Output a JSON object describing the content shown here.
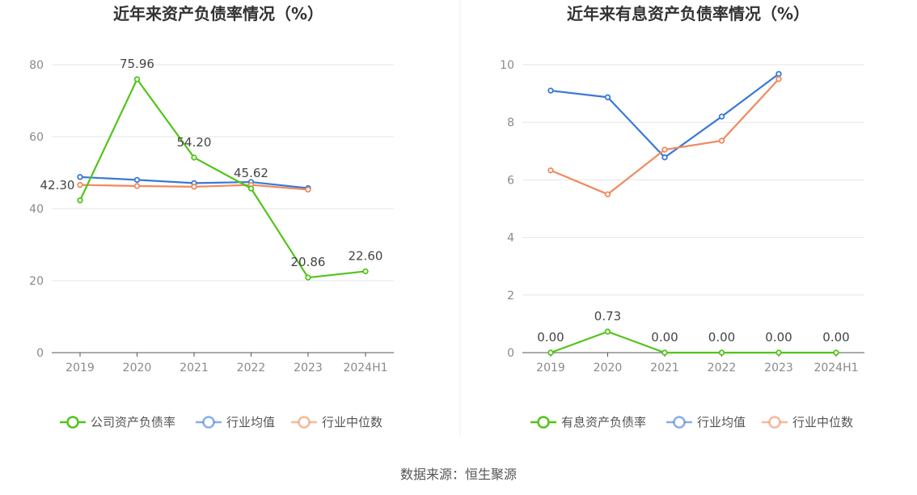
{
  "source_label": "数据来源：恒生聚源",
  "chart_data": [
    {
      "type": "line",
      "title": "近年来资产负债率情况（%）",
      "categories": [
        "2019",
        "2020",
        "2021",
        "2022",
        "2023",
        "2024H1"
      ],
      "ylim": [
        0,
        80
      ],
      "yticks": [
        0,
        20,
        40,
        60,
        80
      ],
      "grid": true,
      "legend_placement": "bottom",
      "series": [
        {
          "name": "公司资产负债率",
          "color": "#52c41a",
          "values": [
            42.3,
            75.96,
            54.2,
            45.62,
            20.86,
            22.6
          ],
          "data_labels": [
            "42.30",
            "75.96",
            "54.20",
            "45.62",
            "20.86",
            "22.60"
          ]
        },
        {
          "name": "行业均值",
          "color": "#3b78d8",
          "values": [
            48.8,
            48.0,
            47.1,
            47.4,
            45.7,
            null
          ]
        },
        {
          "name": "行业中位数",
          "color": "#f08a5d",
          "values": [
            46.6,
            46.3,
            46.1,
            46.6,
            45.3,
            null
          ]
        }
      ]
    },
    {
      "type": "line",
      "title": "近年来有息资产负债率情况（%）",
      "categories": [
        "2019",
        "2020",
        "2021",
        "2022",
        "2023",
        "2024H1"
      ],
      "ylim": [
        0,
        10
      ],
      "yticks": [
        0,
        2,
        4,
        6,
        8,
        10
      ],
      "grid": true,
      "legend_placement": "bottom",
      "series": [
        {
          "name": "有息资产负债率",
          "color": "#52c41a",
          "values": [
            0.0,
            0.73,
            0.0,
            0.0,
            0.0,
            0.0
          ],
          "data_labels": [
            "0.00",
            "0.73",
            "0.00",
            "0.00",
            "0.00",
            "0.00"
          ]
        },
        {
          "name": "行业均值",
          "color": "#3b78d8",
          "values": [
            9.1,
            8.87,
            6.78,
            8.2,
            9.68,
            null
          ]
        },
        {
          "name": "行业中位数",
          "color": "#f08a5d",
          "values": [
            6.33,
            5.5,
            7.05,
            7.36,
            9.5,
            null
          ]
        }
      ]
    }
  ]
}
